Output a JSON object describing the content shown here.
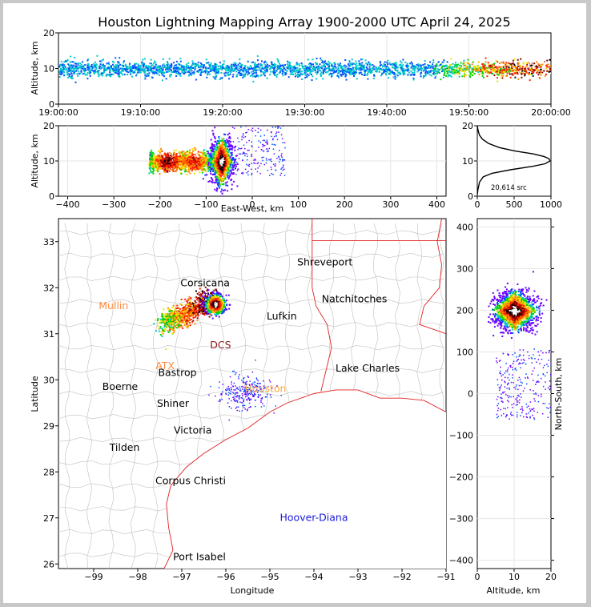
{
  "title": "Houston Lightning Mapping Array 1900-2000 UTC April 24, 2025",
  "chart_data": [
    {
      "type": "heatmap",
      "panel": "time-altitude",
      "ylabel": "Altitude, km",
      "x_ticks": [
        "19:00:00",
        "19:10:00",
        "19:20:00",
        "19:30:00",
        "19:40:00",
        "19:50:00",
        "20:00:00"
      ],
      "xlim": [
        "19:00:00",
        "20:00:00"
      ],
      "y_ticks": [
        "0",
        "10",
        "20"
      ],
      "ylim": [
        0,
        20
      ],
      "band_center_altitude_km": 10,
      "density_peak_time": "19:55:00",
      "grid": true
    },
    {
      "type": "heatmap",
      "panel": "east-west-altitude",
      "xlabel": "East-West, km",
      "ylabel": "Altitude, km",
      "x_ticks": [
        "−400",
        "−300",
        "−200",
        "−100",
        "0",
        "100",
        "200",
        "300",
        "400"
      ],
      "xlim": [
        -420,
        420
      ],
      "y_ticks": [
        "0",
        "10",
        "20"
      ],
      "ylim": [
        0,
        20
      ],
      "grid": true
    },
    {
      "type": "line",
      "panel": "source-altitude-histogram",
      "x_ticks": [
        "0",
        "500",
        "1000"
      ],
      "xlim": [
        0,
        1000
      ],
      "y_ticks": [
        "0",
        "10",
        "20"
      ],
      "ylim": [
        0,
        20
      ],
      "annotation": "20,614 src",
      "series": [
        {
          "x": [
            0,
            10,
            30,
            80,
            200,
            450,
            760,
            920,
            990,
            970,
            900,
            760,
            520,
            300,
            150,
            70,
            30,
            15,
            5,
            0
          ],
          "y": [
            0.5,
            2,
            4,
            5.5,
            6.5,
            7.5,
            8.5,
            9.2,
            10,
            10.7,
            11.3,
            12,
            12.8,
            13.8,
            15,
            16.2,
            17.3,
            18.3,
            19.3,
            20
          ]
        }
      ]
    },
    {
      "type": "map",
      "panel": "plan-view",
      "xlabel": "Longitude",
      "ylabel": "Latitude",
      "x_ticks": [
        "−99",
        "−98",
        "−97",
        "−96",
        "−95",
        "−94",
        "−93",
        "−92",
        "−91"
      ],
      "xlim": [
        -99.8,
        -91
      ],
      "y_ticks": [
        "26",
        "27",
        "28",
        "29",
        "30",
        "31",
        "32",
        "33"
      ],
      "ylim": [
        25.9,
        33.5
      ],
      "cities": [
        {
          "name": "Corsicana",
          "lon": -96.47,
          "lat": 32.1,
          "color": "#000000"
        },
        {
          "name": "Shreveport",
          "lon": -93.75,
          "lat": 32.55,
          "color": "#000000"
        },
        {
          "name": "Mullin",
          "lon": -98.55,
          "lat": 31.6,
          "color": "#ff8c40"
        },
        {
          "name": "Natchitoches",
          "lon": -93.08,
          "lat": 31.75,
          "color": "#000000"
        },
        {
          "name": "Lufkin",
          "lon": -94.73,
          "lat": 31.38,
          "color": "#000000"
        },
        {
          "name": "DCS",
          "lon": -96.12,
          "lat": 30.75,
          "color": "#8a1a1a"
        },
        {
          "name": "ATX",
          "lon": -97.38,
          "lat": 30.3,
          "color": "#ff8c40"
        },
        {
          "name": "Bastrop",
          "lon": -97.1,
          "lat": 30.15,
          "color": "#000000"
        },
        {
          "name": "Lake Charles",
          "lon": -92.78,
          "lat": 30.25,
          "color": "#000000"
        },
        {
          "name": "Boerne",
          "lon": -98.4,
          "lat": 29.85,
          "color": "#000000"
        },
        {
          "name": "Houston",
          "lon": -95.1,
          "lat": 29.8,
          "color": "#f4a83a"
        },
        {
          "name": "Shiner",
          "lon": -97.2,
          "lat": 29.48,
          "color": "#000000"
        },
        {
          "name": "Victoria",
          "lon": -96.75,
          "lat": 28.9,
          "color": "#000000"
        },
        {
          "name": "Tilden",
          "lon": -98.3,
          "lat": 28.53,
          "color": "#000000"
        },
        {
          "name": "Corpus Christi",
          "lon": -96.8,
          "lat": 27.8,
          "color": "#000000"
        },
        {
          "name": "Hoover-Diana",
          "lon": -94.0,
          "lat": 27.0,
          "color": "#1a1adc"
        },
        {
          "name": "Port Isabel",
          "lon": -96.6,
          "lat": 26.15,
          "color": "#000000"
        }
      ]
    },
    {
      "type": "heatmap",
      "panel": "altitude-north-south",
      "xlabel": "Altitude, km",
      "ylabel": "North-South, km",
      "x_ticks": [
        "0",
        "10",
        "20"
      ],
      "xlim": [
        0,
        20
      ],
      "y_ticks": [
        "−400",
        "−300",
        "−200",
        "−100",
        "0",
        "100",
        "200",
        "300",
        "400"
      ],
      "ylim": [
        -420,
        420
      ],
      "grid": true
    }
  ],
  "colors": {
    "density_low": "#6a00ff",
    "density_mid": "#00d200",
    "density_high": "#ff1e00",
    "density_peak": "#ffffff",
    "state_border": "#e02020",
    "county_border": "#bfbfbf"
  }
}
